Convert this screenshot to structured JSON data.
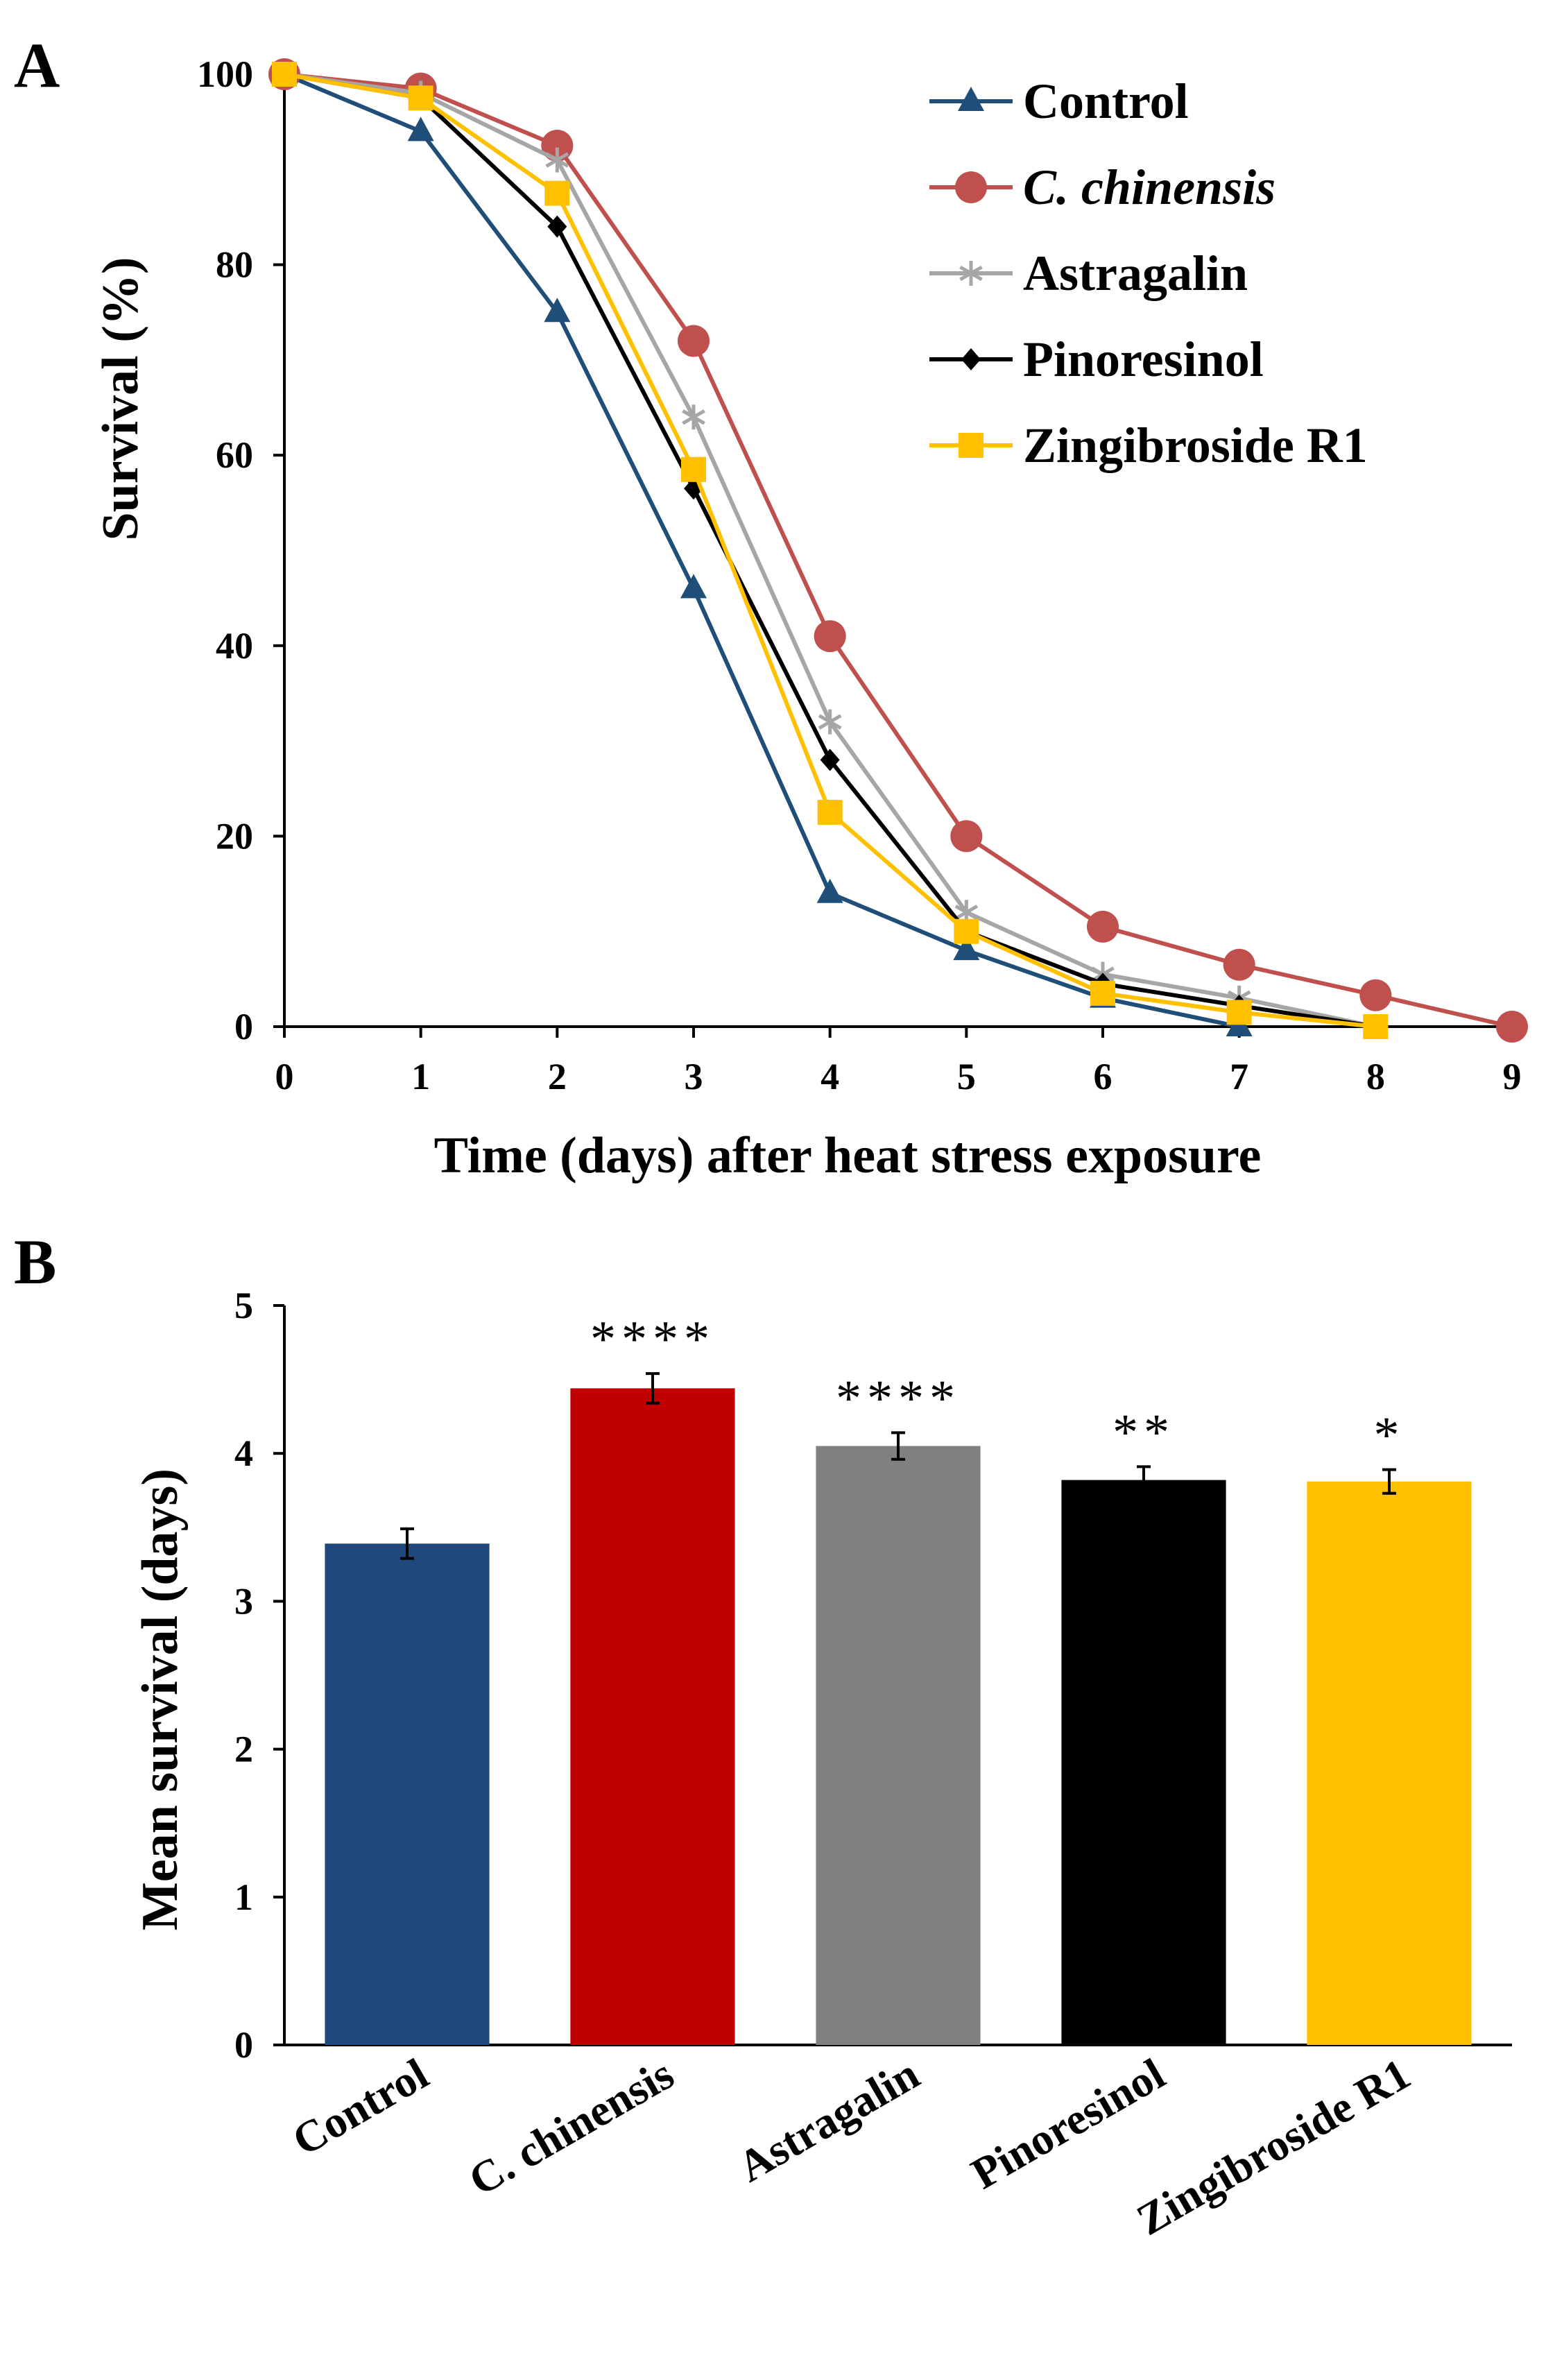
{
  "chart_data": [
    {
      "panel": "A",
      "type": "line",
      "xlabel": "Time (days) after heat stress exposure",
      "ylabel": "Survival (%)",
      "xlim": [
        0,
        9
      ],
      "ylim": [
        0,
        100
      ],
      "xticks": [
        0,
        1,
        2,
        3,
        4,
        5,
        6,
        7,
        8,
        9
      ],
      "yticks": [
        0,
        20,
        40,
        60,
        80,
        100
      ],
      "grid": false,
      "legend_position": "top-right",
      "series": [
        {
          "name": "Control",
          "italic": false,
          "color": "#1f4e79",
          "marker": "triangle",
          "x": [
            0,
            1,
            2,
            3,
            4,
            5,
            6,
            7
          ],
          "y": [
            100,
            94,
            75,
            46,
            14,
            8,
            3,
            0
          ]
        },
        {
          "name": "C. chinensis",
          "italic": true,
          "color": "#c0504d",
          "marker": "circle",
          "x": [
            0,
            1,
            2,
            3,
            4,
            5,
            6,
            7,
            8,
            9
          ],
          "y": [
            100,
            98.5,
            92.5,
            72,
            41,
            20,
            10.5,
            6.5,
            3.3,
            0
          ]
        },
        {
          "name": "Astragalin",
          "italic": false,
          "color": "#a6a6a6",
          "marker": "star",
          "x": [
            0,
            1,
            2,
            3,
            4,
            5,
            6,
            7,
            8
          ],
          "y": [
            100,
            98,
            91,
            64,
            32,
            12,
            5.5,
            3,
            0
          ]
        },
        {
          "name": "Pinoresinol",
          "italic": false,
          "color": "#000000",
          "marker": "diamond",
          "x": [
            0,
            1,
            2,
            3,
            4,
            5,
            6,
            7,
            8
          ],
          "y": [
            100,
            97.5,
            84,
            56.5,
            28,
            10,
            4.5,
            2.2,
            0
          ]
        },
        {
          "name": "Zingibroside R1",
          "italic": false,
          "color": "#ffc000",
          "marker": "square",
          "x": [
            0,
            1,
            2,
            3,
            4,
            5,
            6,
            7,
            8
          ],
          "y": [
            100,
            97.5,
            87.5,
            58.5,
            22.5,
            10,
            3.5,
            1.5,
            0
          ]
        }
      ]
    },
    {
      "panel": "B",
      "type": "bar",
      "xlabel": "",
      "ylabel": "Mean survival (days)",
      "ylim": [
        0,
        5
      ],
      "yticks": [
        0,
        1,
        2,
        3,
        4,
        5
      ],
      "grid": false,
      "categories": [
        "Control",
        "C. chinensis",
        "Astragalin",
        "Pinoresinol",
        "Zingibroside R1"
      ],
      "values": [
        3.39,
        4.44,
        4.05,
        3.82,
        3.81
      ],
      "errors": [
        0.1,
        0.1,
        0.09,
        0.09,
        0.08
      ],
      "colors": [
        "#1f497d",
        "#c00000",
        "#808080",
        "#000000",
        "#ffc000"
      ],
      "significance": [
        "",
        "****",
        "****",
        "**",
        "*"
      ]
    }
  ]
}
